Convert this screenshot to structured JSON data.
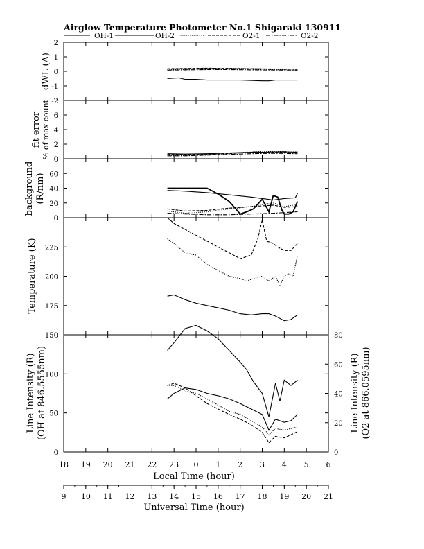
{
  "title": "Airglow Temperature Photometer No.1   Shigaraki   130911",
  "legend": [
    "OH-1",
    "OH-2",
    "O2-1",
    "O2-2"
  ],
  "chart_data": [
    {
      "type": "line",
      "ylabel": "dWL (A)",
      "ylim": [
        -2,
        2
      ],
      "yticks": [
        2,
        1,
        0,
        -1,
        -2
      ],
      "x_unit": "local hour (continuous, 24 = 0)",
      "series": [
        {
          "style": "solid",
          "x": [
            22.7,
            23.2,
            23.5,
            24.0,
            24.5,
            25.0,
            26.0,
            27.0,
            27.3,
            27.6,
            28.0,
            28.6
          ],
          "y": [
            -0.5,
            -0.45,
            -0.55,
            -0.55,
            -0.6,
            -0.6,
            -0.6,
            -0.65,
            -0.65,
            -0.6,
            -0.6,
            -0.6
          ]
        },
        {
          "style": "dotted",
          "x": [
            22.7,
            23.5,
            24.5,
            25.5,
            26.5,
            27.5,
            28.6
          ],
          "y": [
            0.12,
            0.15,
            0.18,
            0.18,
            0.16,
            0.14,
            0.13
          ]
        },
        {
          "style": "dashed",
          "x": [
            22.7,
            23.5,
            24.5,
            25.5,
            26.5,
            27.5,
            28.6
          ],
          "y": [
            0.18,
            0.2,
            0.22,
            0.2,
            0.18,
            0.16,
            0.15
          ]
        },
        {
          "style": "dash-dot",
          "x": [
            22.7,
            23.5,
            24.5,
            25.5,
            26.5,
            27.5,
            28.6
          ],
          "y": [
            0.08,
            0.1,
            0.12,
            0.12,
            0.1,
            0.09,
            0.08
          ]
        }
      ]
    },
    {
      "type": "line",
      "ylabel": "fit error",
      "ylabel2": "% of max count",
      "ylim": [
        0,
        8
      ],
      "yticks": [
        6,
        4,
        2,
        0
      ],
      "series": [
        {
          "style": "solid",
          "x": [
            22.7,
            23.5,
            24.5,
            25.5,
            26.0,
            26.5,
            27.0,
            27.5,
            28.0,
            28.6
          ],
          "y": [
            0.7,
            0.65,
            0.7,
            0.8,
            0.85,
            0.9,
            0.9,
            0.95,
            0.95,
            0.9
          ]
        },
        {
          "style": "dotted",
          "x": [
            22.7,
            23.5,
            24.5,
            25.5,
            26.0,
            26.5,
            27.0,
            27.5,
            28.0,
            28.6
          ],
          "y": [
            0.5,
            0.45,
            0.6,
            0.75,
            0.85,
            0.95,
            1.0,
            1.0,
            1.0,
            0.95
          ]
        },
        {
          "style": "dashed",
          "x": [
            22.7,
            23.5,
            24.5,
            25.5,
            26.0,
            26.5,
            27.0,
            27.5,
            28.0,
            28.6
          ],
          "y": [
            0.6,
            0.55,
            0.6,
            0.7,
            0.8,
            0.85,
            0.9,
            0.9,
            0.85,
            0.8
          ]
        },
        {
          "style": "dash-dot",
          "x": [
            22.7,
            23.5,
            24.5,
            25.5,
            26.5,
            27.5,
            28.6
          ],
          "y": [
            0.4,
            0.4,
            0.5,
            0.6,
            0.7,
            0.75,
            0.7
          ]
        }
      ]
    },
    {
      "type": "line",
      "ylabel": "background",
      "ylabel2": "(R/nm)",
      "ylim": [
        0,
        80
      ],
      "yticks": [
        60,
        40,
        20,
        0
      ],
      "series": [
        {
          "style": "solid",
          "x": [
            22.7,
            23.5,
            24.0,
            24.5,
            25.0,
            25.5,
            25.8,
            26.0,
            26.3,
            26.6,
            27.0,
            27.3,
            27.5,
            27.7,
            27.9,
            28.0,
            28.2,
            28.4,
            28.6
          ],
          "y": [
            40,
            40,
            40,
            40,
            32,
            22,
            12,
            5,
            8,
            12,
            25,
            8,
            30,
            28,
            10,
            5,
            5,
            8,
            22
          ]
        },
        {
          "style": "solid",
          "x": [
            22.7,
            23.5,
            24.5,
            25.5,
            26.5,
            27.0,
            27.5,
            28.0,
            28.5,
            28.6
          ],
          "y": [
            37,
            36,
            34,
            31,
            28,
            26,
            24,
            26,
            27,
            33
          ]
        },
        {
          "style": "dotted",
          "x": [
            22.7,
            23.5,
            24.5,
            25.5,
            26.5,
            27.0,
            27.5,
            28.0,
            28.6
          ],
          "y": [
            9,
            6,
            8,
            12,
            15,
            18,
            20,
            15,
            18
          ]
        },
        {
          "style": "dashed",
          "x": [
            22.7,
            23.5,
            24.5,
            25.5,
            26.5,
            27.5,
            28.0,
            28.6
          ],
          "y": [
            12,
            9,
            10,
            13,
            15,
            17,
            14,
            15
          ]
        },
        {
          "style": "dash-dot",
          "x": [
            22.7,
            23.5,
            24.5,
            25.5,
            26.5,
            27.5,
            28.6
          ],
          "y": [
            6,
            5,
            4,
            4,
            5,
            6,
            8
          ]
        }
      ]
    },
    {
      "type": "line",
      "ylabel": "Temperature (K)",
      "ylim": [
        150,
        250
      ],
      "yticks": [
        225,
        200,
        175
      ],
      "series": [
        {
          "style": "solid",
          "x": [
            22.7,
            23.0,
            23.5,
            24.0,
            24.5,
            25.0,
            25.5,
            26.0,
            26.5,
            27.0,
            27.3,
            27.6,
            28.0,
            28.3,
            28.6
          ],
          "y": [
            183,
            184,
            180,
            177,
            175,
            173,
            171,
            168,
            167,
            168,
            168,
            166,
            162,
            163,
            167
          ]
        },
        {
          "style": "dotted",
          "x": [
            22.7,
            23.0,
            23.5,
            24.0,
            24.5,
            25.0,
            25.5,
            26.0,
            26.3,
            26.6,
            27.0,
            27.3,
            27.6,
            27.8,
            28.0,
            28.2,
            28.4,
            28.6
          ],
          "y": [
            232,
            228,
            220,
            218,
            210,
            205,
            200,
            198,
            196,
            198,
            200,
            196,
            200,
            192,
            200,
            202,
            200,
            218
          ]
        },
        {
          "style": "dashed",
          "x": [
            22.7,
            23.0,
            23.5,
            24.0,
            24.5,
            25.0,
            25.5,
            26.0,
            26.5,
            26.8,
            27.0,
            27.2,
            27.5,
            27.7,
            28.0,
            28.3,
            28.6
          ],
          "y": [
            250,
            245,
            240,
            235,
            230,
            225,
            220,
            215,
            218,
            232,
            248,
            230,
            228,
            225,
            222,
            222,
            228
          ]
        }
      ]
    },
    {
      "type": "line",
      "ylabel": "Line Intensity (R)",
      "ylabel2": "(OH at 846.5555nm)",
      "ylim": [
        0,
        150
      ],
      "yticks": [
        150,
        100,
        50,
        0
      ],
      "y2label": "Line Intensity (R)",
      "y2label2": "(O2 at 866.0595nm)",
      "y2lim": [
        0,
        80
      ],
      "y2ticks": [
        80,
        60,
        40,
        20,
        0
      ],
      "series": [
        {
          "style": "solid",
          "x": [
            22.7,
            23.0,
            23.5,
            24.0,
            24.5,
            25.0,
            25.5,
            26.0,
            26.3,
            26.6,
            27.0,
            27.3,
            27.6,
            27.8,
            28.0,
            28.3,
            28.6
          ],
          "y": [
            130,
            140,
            158,
            162,
            155,
            145,
            130,
            115,
            105,
            90,
            75,
            45,
            88,
            65,
            92,
            85,
            92
          ]
        },
        {
          "style": "solid",
          "x": [
            22.7,
            23.0,
            23.5,
            24.0,
            24.5,
            25.0,
            25.5,
            26.0,
            26.5,
            27.0,
            27.3,
            27.6,
            28.0,
            28.3,
            28.6
          ],
          "y": [
            68,
            75,
            82,
            80,
            75,
            72,
            68,
            62,
            55,
            48,
            28,
            42,
            38,
            40,
            48
          ]
        },
        {
          "style": "dotted",
          "x": [
            22.7,
            23.0,
            23.5,
            24.0,
            24.5,
            25.0,
            25.5,
            26.0,
            26.5,
            27.0,
            27.3,
            27.6,
            28.0,
            28.3,
            28.6
          ],
          "y": [
            85,
            85,
            78,
            75,
            68,
            60,
            52,
            48,
            40,
            32,
            22,
            30,
            28,
            30,
            32
          ]
        },
        {
          "style": "dashed",
          "x": [
            22.7,
            23.0,
            23.5,
            24.0,
            24.5,
            25.0,
            25.5,
            26.0,
            26.5,
            27.0,
            27.3,
            27.6,
            28.0,
            28.3,
            28.6
          ],
          "y": [
            85,
            88,
            82,
            72,
            62,
            55,
            48,
            42,
            35,
            25,
            12,
            20,
            18,
            22,
            26
          ]
        }
      ]
    }
  ],
  "xaxis_local": {
    "label": "Local Time (hour)",
    "ticks": [
      "18",
      "19",
      "20",
      "21",
      "22",
      "23",
      "0",
      "1",
      "2",
      "3",
      "4",
      "5",
      "6"
    ]
  },
  "xaxis_utc": {
    "label": "Universal Time (hour)",
    "ticks": [
      "9",
      "10",
      "11",
      "12",
      "13",
      "14",
      "15",
      "16",
      "17",
      "18",
      "19",
      "20",
      "21"
    ]
  }
}
